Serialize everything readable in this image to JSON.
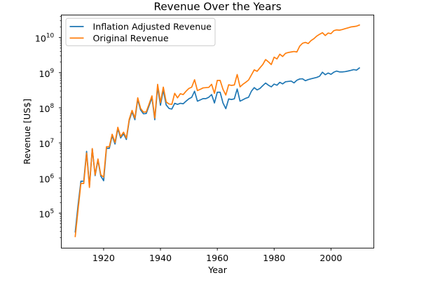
{
  "figure": {
    "background": "#ffffff"
  },
  "chart_data": {
    "type": "line",
    "title": "Revenue Over the Years",
    "xlabel": "Year",
    "ylabel": "Revenue [US$]",
    "yscale": "log",
    "grid": false,
    "legend_position": "upper left",
    "xlim": [
      1905.1,
      2015.1
    ],
    "ylim": [
      10080,
      43900000000
    ],
    "x_ticks": [
      1920,
      1940,
      1960,
      1980,
      2000
    ],
    "y_tick_base": 10,
    "y_tick_exponents": [
      5,
      6,
      7,
      8,
      9,
      10
    ],
    "x": [
      1910,
      1911,
      1912,
      1913,
      1914,
      1915,
      1916,
      1917,
      1918,
      1919,
      1920,
      1921,
      1922,
      1923,
      1924,
      1925,
      1926,
      1927,
      1928,
      1929,
      1930,
      1931,
      1932,
      1933,
      1934,
      1935,
      1936,
      1937,
      1938,
      1939,
      1940,
      1941,
      1942,
      1943,
      1944,
      1945,
      1946,
      1947,
      1948,
      1949,
      1950,
      1951,
      1952,
      1953,
      1954,
      1955,
      1956,
      1957,
      1958,
      1959,
      1960,
      1961,
      1962,
      1963,
      1964,
      1965,
      1966,
      1967,
      1968,
      1969,
      1970,
      1971,
      1972,
      1973,
      1974,
      1975,
      1976,
      1977,
      1978,
      1979,
      1980,
      1981,
      1982,
      1983,
      1984,
      1985,
      1986,
      1987,
      1988,
      1989,
      1990,
      1991,
      1992,
      1993,
      1994,
      1995,
      1996,
      1997,
      1998,
      1999,
      2000,
      2001,
      2002,
      2003,
      2004,
      2005,
      2006,
      2007,
      2008,
      2009,
      2010
    ],
    "series": [
      {
        "name": "Inflation Adjusted Revenue",
        "color": "#1f77b4",
        "values": [
          29000.0,
          170000.0,
          809000.0,
          809000.0,
          5730000.0,
          599000.0,
          6740000.0,
          1170000.0,
          3230000.0,
          1130000.0,
          834000.0,
          6990000.0,
          6990000.0,
          16000000.0,
          9260000.0,
          25200000.0,
          13800000.0,
          18200000.0,
          12500000.0,
          43100000.0,
          76400000.0,
          45700000.0,
          173000000.0,
          86700000.0,
          67400000.0,
          68700000.0,
          115000000.0,
          195000000.0,
          45700000.0,
          387000000.0,
          118000000.0,
          322000000.0,
          121000000.0,
          95700000.0,
          91800000.0,
          134000000.0,
          125000000.0,
          134000000.0,
          130000000.0,
          154000000.0,
          180000000.0,
          199000000.0,
          296000000.0,
          154000000.0,
          167000000.0,
          182000000.0,
          182000000.0,
          199000000.0,
          238000000.0,
          137000000.0,
          277000000.0,
          277000000.0,
          137000000.0,
          94400000.0,
          178000000.0,
          172000000.0,
          180000000.0,
          342000000.0,
          154000000.0,
          169000000.0,
          186000000.0,
          199000000.0,
          296000000.0,
          374000000.0,
          322000000.0,
          355000000.0,
          426000000.0,
          505000000.0,
          439000000.0,
          394000000.0,
          472000000.0,
          439000000.0,
          531000000.0,
          478000000.0,
          550000000.0,
          563000000.0,
          576000000.0,
          511000000.0,
          609000000.0,
          661000000.0,
          668000000.0,
          589000000.0,
          635000000.0,
          668000000.0,
          700000000.0,
          733000000.0,
          792000000.0,
          1030000000.0,
          871000000.0,
          976000000.0,
          897000000.0,
          1030000000.0,
          1110000000.0,
          1050000000.0,
          1050000000.0,
          1070000000.0,
          1110000000.0,
          1160000000.0,
          1220000000.0,
          1180000000.0,
          1360000000.0
        ]
      },
      {
        "name": "Original Revenue",
        "color": "#ff7f0e",
        "values": [
          21500.0,
          126000.0,
          698000.0,
          698000.0,
          5110000.0,
          538000.0,
          6870000.0,
          1230000.0,
          3480000.0,
          1230000.0,
          1060000.0,
          7750000.0,
          7750000.0,
          17600000.0,
          10300000.0,
          27800000.0,
          15100000.0,
          20200000.0,
          13800000.0,
          46900000.0,
          84100000.0,
          50800000.0,
          192000000.0,
          95700000.0,
          75100000.0,
          76400000.0,
          128000000.0,
          218000000.0,
          50800000.0,
          465000000.0,
          141000000.0,
          387000000.0,
          147000000.0,
          128000000.0,
          125000000.0,
          257000000.0,
          192000000.0,
          251000000.0,
          238000000.0,
          296000000.0,
          355000000.0,
          387000000.0,
          629000000.0,
          309000000.0,
          335000000.0,
          368000000.0,
          374000000.0,
          381000000.0,
          465000000.0,
          257000000.0,
          602000000.0,
          602000000.0,
          335000000.0,
          231000000.0,
          452000000.0,
          433000000.0,
          446000000.0,
          884000000.0,
          394000000.0,
          465000000.0,
          531000000.0,
          615000000.0,
          858000000.0,
          1200000000.0,
          1090000000.0,
          1370000000.0,
          1700000000.0,
          2360000000.0,
          2030000000.0,
          1700000000.0,
          2760000000.0,
          2460000000.0,
          3350000000.0,
          2890000000.0,
          3550000000.0,
          3750000000.0,
          3880000000.0,
          4010000000.0,
          3880000000.0,
          5680000000.0,
          6870000000.0,
          7270000000.0,
          6740000000.0,
          8210000000.0,
          9280000000.0,
          11000000000.0,
          12400000000.0,
          13700000000.0,
          11400000000.0,
          13400000000.0,
          12900000000.0,
          15700000000.0,
          16500000000.0,
          16200000000.0,
          16900000000.0,
          17900000000.0,
          18900000000.0,
          20000000000.0,
          20500000000.0,
          21100000000.0,
          22700000000.0
        ]
      }
    ]
  }
}
